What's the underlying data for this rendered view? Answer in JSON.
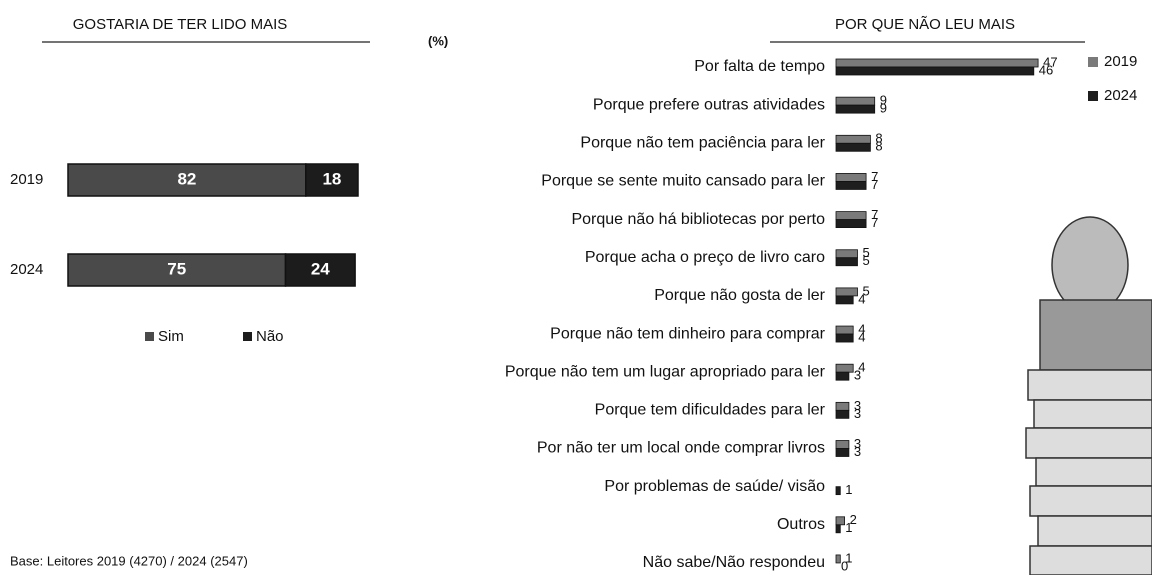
{
  "chart_data": [
    {
      "type": "stacked_bar",
      "title": "GOSTARIA DE TER LIDO MAIS",
      "categories": [
        "2019",
        "2024"
      ],
      "series": [
        {
          "name": "Sim",
          "color": "#4a4a4a",
          "values": [
            82,
            75
          ]
        },
        {
          "name": "Não",
          "color": "#1c1c1c",
          "values": [
            18,
            24
          ]
        }
      ],
      "note": "Base: Leitores  2019 (4270) / 2024 (2547)"
    },
    {
      "type": "grouped_bar",
      "title": "POR QUE NÃO LEU MAIS",
      "unit": "(%)",
      "categories": [
        "Por falta de tempo",
        "Porque prefere outras atividades",
        "Porque não tem paciência para ler",
        "Porque se sente muito cansado para ler",
        "Porque não há bibliotecas por perto",
        "Porque acha o preço de livro caro",
        "Porque não gosta de ler",
        "Porque não tem dinheiro para comprar",
        "Porque não tem um lugar apropriado para ler",
        "Porque tem dificuldades para ler",
        "Por não ter um local onde comprar livros",
        "Por problemas de saúde/ visão",
        "Outros",
        "Não sabe/Não respondeu"
      ],
      "series": [
        {
          "name": "2019",
          "color": "#7a7a7a",
          "values": [
            47,
            9,
            8,
            7,
            7,
            5,
            5,
            4,
            4,
            3,
            3,
            null,
            2,
            1
          ]
        },
        {
          "name": "2024",
          "color": "#1e1e1e",
          "values": [
            46,
            9,
            8,
            7,
            7,
            5,
            4,
            4,
            3,
            3,
            3,
            1,
            1,
            0
          ]
        }
      ]
    }
  ]
}
